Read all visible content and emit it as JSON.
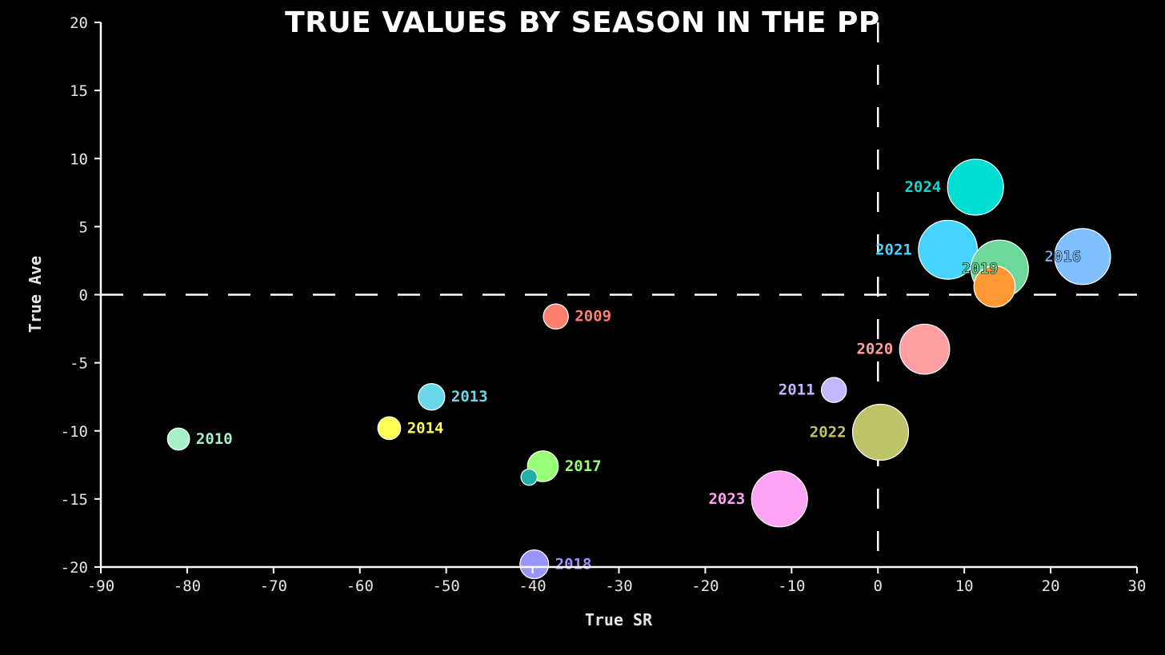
{
  "chart_data": {
    "type": "scatter",
    "title": "TRUE VALUES BY SEASON IN THE PP",
    "xlabel": "True SR",
    "ylabel": "True Ave",
    "xlim": [
      -90,
      30
    ],
    "ylim": [
      -20,
      20
    ],
    "xticks": [
      -90,
      -80,
      -70,
      -60,
      -50,
      -40,
      -30,
      -20,
      -10,
      0,
      10,
      20,
      30
    ],
    "yticks": [
      -20,
      -15,
      -10,
      -5,
      0,
      5,
      10,
      15,
      20
    ],
    "reference_lines": {
      "x": 0,
      "y": 0,
      "style": "dashed"
    },
    "grid": false,
    "marker_size_note": "bubble size varies by season",
    "points": [
      {
        "label": "2009",
        "x": -37.3,
        "y": -1.6,
        "size": 0.34,
        "color": "#ff7f6e",
        "label_side": "right"
      },
      {
        "label": "2010",
        "x": -81.0,
        "y": -10.6,
        "size": 0.3,
        "color": "#a8f0c8",
        "label_side": "right"
      },
      {
        "label": "2011",
        "x": -5.1,
        "y": -7.0,
        "size": 0.34,
        "color": "#c2b8ff",
        "label_side": "left"
      },
      {
        "label": "",
        "x": -40.4,
        "y": -13.4,
        "size": 0.22,
        "color": "#20b2aa",
        "label_side": "none"
      },
      {
        "label": "2013",
        "x": -51.7,
        "y": -7.5,
        "size": 0.36,
        "color": "#6ad8e8",
        "label_side": "right"
      },
      {
        "label": "2014",
        "x": -56.6,
        "y": -9.8,
        "size": 0.31,
        "color": "#ffff55",
        "label_side": "right"
      },
      {
        "label": "",
        "x": 13.5,
        "y": 0.6,
        "size": 0.56,
        "color": "#ff9933",
        "label_side": "none"
      },
      {
        "label": "2016",
        "x": 23.7,
        "y": 2.8,
        "size": 0.76,
        "color": "#80c0ff",
        "label_side": "left-inside"
      },
      {
        "label": "2017",
        "x": -38.8,
        "y": -12.6,
        "size": 0.42,
        "color": "#99ff77",
        "label_side": "right"
      },
      {
        "label": "2018",
        "x": -39.8,
        "y": -19.8,
        "size": 0.39,
        "color": "#9a94ff",
        "label_side": "right"
      },
      {
        "label": "2019",
        "x": 14.1,
        "y": 1.9,
        "size": 0.78,
        "color": "#6dd899",
        "label_side": "left-inside"
      },
      {
        "label": "2020",
        "x": 5.4,
        "y": -4.0,
        "size": 0.68,
        "color": "#ff9ea3",
        "label_side": "left"
      },
      {
        "label": "2021",
        "x": 8.1,
        "y": 3.3,
        "size": 0.8,
        "color": "#45d3ff",
        "label_side": "left"
      },
      {
        "label": "2022",
        "x": 0.3,
        "y": -10.1,
        "size": 0.76,
        "color": "#bfc46a",
        "label_side": "left"
      },
      {
        "label": "2023",
        "x": -11.4,
        "y": -15.0,
        "size": 0.76,
        "color": "#ffa3f4",
        "label_side": "left"
      },
      {
        "label": "2024",
        "x": 11.3,
        "y": 7.9,
        "size": 0.76,
        "color": "#00ddd2",
        "label_side": "left"
      }
    ]
  }
}
